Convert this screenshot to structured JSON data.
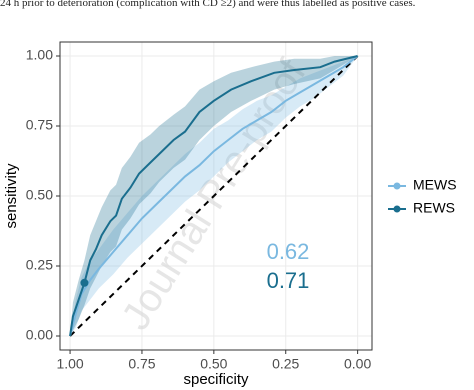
{
  "caption": "24 h prior to deterioration (complication with CD ≥2) and were thus labelled as positive cases.",
  "chart_data": {
    "type": "roc",
    "x_label": "specificity",
    "y_label": "sensitivity",
    "watermark": "Journal Pre-proof",
    "xlim": [
      1.035,
      -0.05
    ],
    "ylim": [
      -0.05,
      1.05
    ],
    "xticks": [
      {
        "value": 1,
        "label": "1.00"
      },
      {
        "value": 0.75,
        "label": "0.75"
      },
      {
        "value": 0.5,
        "label": "0.50"
      },
      {
        "value": 0.25,
        "label": "0.25"
      },
      {
        "value": 0,
        "label": "0.00"
      }
    ],
    "yticks": [
      {
        "value": 0,
        "label": "0.00"
      },
      {
        "value": 0.25,
        "label": "0.25"
      },
      {
        "value": 0.5,
        "label": "0.50"
      },
      {
        "value": 0.75,
        "label": "0.75"
      },
      {
        "value": 1,
        "label": "1.00"
      }
    ],
    "grid": true,
    "legend_position": "right",
    "diagonal": {
      "x": [
        1,
        0
      ],
      "y": [
        0,
        1
      ]
    },
    "highlight": {
      "x": 0.95,
      "y": 0.19,
      "color": "#1a6e8e"
    },
    "series": [
      {
        "name": "MEWS",
        "color": "#7ab8e0",
        "auc": 0.62,
        "x": [
          1,
          0.98,
          0.96,
          0.93,
          0.9,
          0.85,
          0.8,
          0.75,
          0.7,
          0.65,
          0.6,
          0.55,
          0.5,
          0.45,
          0.4,
          0.35,
          0.3,
          0.25,
          0.2,
          0.15,
          0.1,
          0.05,
          0
        ],
        "values": [
          0,
          0.08,
          0.15,
          0.2,
          0.24,
          0.3,
          0.36,
          0.42,
          0.47,
          0.52,
          0.57,
          0.61,
          0.66,
          0.7,
          0.74,
          0.77,
          0.8,
          0.84,
          0.87,
          0.9,
          0.93,
          0.96,
          1
        ],
        "lower": [
          0,
          0.03,
          0.09,
          0.13,
          0.17,
          0.22,
          0.28,
          0.33,
          0.38,
          0.43,
          0.48,
          0.52,
          0.57,
          0.62,
          0.66,
          0.7,
          0.73,
          0.78,
          0.82,
          0.85,
          0.89,
          0.93,
          1
        ],
        "upper": [
          0,
          0.13,
          0.21,
          0.27,
          0.31,
          0.38,
          0.44,
          0.5,
          0.55,
          0.6,
          0.65,
          0.69,
          0.74,
          0.77,
          0.81,
          0.84,
          0.86,
          0.89,
          0.92,
          0.94,
          0.96,
          0.98,
          1
        ]
      },
      {
        "name": "REWS",
        "color": "#1a6e8e",
        "auc": 0.71,
        "x": [
          1,
          0.99,
          0.97,
          0.95,
          0.93,
          0.91,
          0.89,
          0.86,
          0.84,
          0.82,
          0.79,
          0.76,
          0.72,
          0.69,
          0.64,
          0.6,
          0.55,
          0.5,
          0.44,
          0.37,
          0.29,
          0.22,
          0.13,
          0.08,
          0
        ],
        "values": [
          0,
          0.07,
          0.13,
          0.19,
          0.27,
          0.31,
          0.36,
          0.41,
          0.43,
          0.49,
          0.53,
          0.58,
          0.62,
          0.65,
          0.7,
          0.73,
          0.8,
          0.84,
          0.88,
          0.91,
          0.94,
          0.95,
          0.96,
          0.98,
          1
        ],
        "lower": [
          0,
          0.02,
          0.06,
          0.11,
          0.17,
          0.21,
          0.25,
          0.3,
          0.32,
          0.38,
          0.42,
          0.47,
          0.51,
          0.55,
          0.6,
          0.63,
          0.7,
          0.75,
          0.8,
          0.84,
          0.88,
          0.9,
          0.92,
          0.95,
          1
        ],
        "upper": [
          0,
          0.12,
          0.2,
          0.27,
          0.36,
          0.41,
          0.46,
          0.52,
          0.54,
          0.6,
          0.64,
          0.69,
          0.72,
          0.75,
          0.79,
          0.82,
          0.88,
          0.91,
          0.94,
          0.96,
          0.98,
          0.99,
          0.99,
          1,
          1
        ]
      }
    ]
  }
}
